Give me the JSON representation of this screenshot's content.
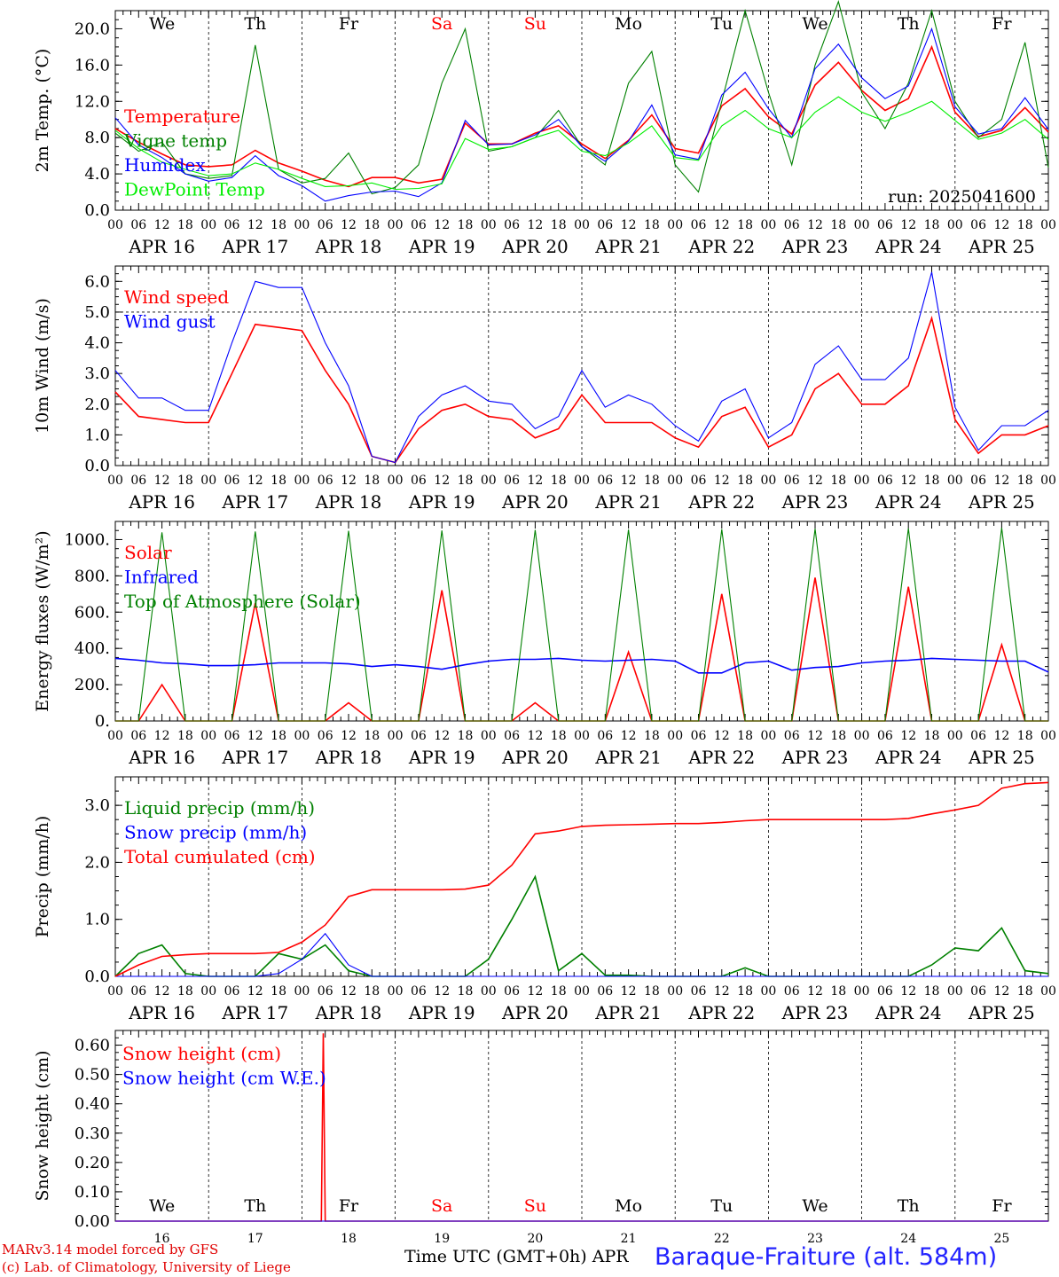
{
  "run_label": "run: 2025041600",
  "footer": {
    "model_line": "MARv3.14 model forced by GFS",
    "copyright_line": "(c) Lab. of Climatology, University of Liege",
    "time_axis_label": "Time UTC (GMT+0h)",
    "month_label": "APR",
    "station": "Baraque-Fraiture (alt. 584m)"
  },
  "colors": {
    "red": "#ff0000",
    "darkgreen": "#008000",
    "blue": "#0000ff",
    "lightgreen": "#00ee00",
    "grey": "#555555"
  },
  "chart_data": [
    {
      "type": "line",
      "ylabel": "2m Temp. (°C)",
      "ylim": [
        0,
        22
      ],
      "yticks": [
        "0.0",
        "4.0",
        "8.0",
        "12.0",
        "16.0",
        "20.0"
      ],
      "day_labels": [
        "We",
        "Th",
        "Fr",
        "Sa",
        "Su",
        "Mo",
        "Tu",
        "We",
        "Th",
        "Fr"
      ],
      "day_label_colors": [
        "#000000",
        "#000000",
        "#000000",
        "#ff0000",
        "#ff0000",
        "#000000",
        "#000000",
        "#000000",
        "#000000",
        "#000000"
      ],
      "hour_ticks": [
        "00",
        "06",
        "12",
        "18"
      ],
      "date_labels": [
        "APR 16",
        "APR 17",
        "APR 18",
        "APR 19",
        "APR 20",
        "APR 21",
        "APR 22",
        "APR 23",
        "APR 24",
        "APR 25"
      ],
      "x_hours": [
        0,
        6,
        12,
        18,
        24,
        30,
        36,
        42,
        48,
        54,
        60,
        66,
        72,
        78,
        84,
        90,
        96,
        102,
        108,
        114,
        120,
        126,
        132,
        138,
        144,
        150,
        156,
        162,
        168,
        174,
        180,
        186,
        192,
        198,
        204,
        210,
        216,
        222,
        228,
        234,
        240
      ],
      "series": [
        {
          "name": "Temperature",
          "color": "#ff0000",
          "values": [
            9.0,
            7.5,
            6.2,
            5.0,
            4.8,
            5.0,
            6.6,
            5.2,
            4.3,
            3.3,
            2.6,
            3.6,
            3.6,
            3.0,
            3.4,
            9.6,
            7.3,
            7.3,
            8.5,
            9.3,
            7.3,
            5.7,
            7.7,
            10.5,
            6.8,
            6.3,
            11.5,
            13.4,
            10.3,
            8.4,
            13.8,
            16.3,
            13.2,
            11.0,
            12.3,
            18.0,
            10.8,
            8.1,
            8.8,
            11.3,
            8.6
          ]
        },
        {
          "name": "Vigne temp",
          "color": "#008000",
          "values": [
            8.5,
            6.5,
            7.5,
            4.0,
            3.5,
            3.8,
            18.2,
            4.5,
            3.0,
            3.5,
            6.3,
            1.8,
            2.5,
            5.0,
            14.0,
            20.0,
            6.5,
            7.0,
            8.0,
            11.0,
            7.0,
            5.0,
            14.0,
            17.5,
            5.0,
            2.0,
            12.0,
            22.0,
            13.0,
            5.0,
            16.0,
            23.0,
            13.0,
            9.0,
            14.0,
            22.0,
            12.0,
            8.0,
            10.0,
            18.5,
            4.7
          ]
        },
        {
          "name": "Humidex",
          "color": "#0000ff",
          "values": [
            10.2,
            7.2,
            5.8,
            4.0,
            3.2,
            3.6,
            6.0,
            3.8,
            2.7,
            1.0,
            1.6,
            2.0,
            2.1,
            1.5,
            3.0,
            9.9,
            7.2,
            7.3,
            8.3,
            10.0,
            7.0,
            5.4,
            7.6,
            11.6,
            6.1,
            5.6,
            12.7,
            15.2,
            11.2,
            8.0,
            15.6,
            18.3,
            14.6,
            12.3,
            13.7,
            20.0,
            11.4,
            8.4,
            9.0,
            12.4,
            8.9
          ]
        },
        {
          "name": "DewPoint Temp",
          "color": "#00ee00",
          "values": [
            8.8,
            6.8,
            5.3,
            4.5,
            3.8,
            4.0,
            5.2,
            4.5,
            3.5,
            2.6,
            2.7,
            3.0,
            2.3,
            2.4,
            2.9,
            7.9,
            6.7,
            7.0,
            8.0,
            8.8,
            6.5,
            6.0,
            7.4,
            9.3,
            5.8,
            5.5,
            9.3,
            11.0,
            9.0,
            8.0,
            10.8,
            12.5,
            10.8,
            9.8,
            10.8,
            12.0,
            9.9,
            7.8,
            8.5,
            10.0,
            7.8
          ]
        }
      ]
    },
    {
      "type": "line",
      "ylabel": "10m Wind (m/s)",
      "ylim": [
        0,
        6.5
      ],
      "yticks": [
        "0.0",
        "1.0",
        "2.0",
        "3.0",
        "4.0",
        "5.0",
        "6.0"
      ],
      "hour_ticks": [
        "00",
        "06",
        "12",
        "18"
      ],
      "date_labels": [
        "APR 16",
        "APR 17",
        "APR 18",
        "APR 19",
        "APR 20",
        "APR 21",
        "APR 22",
        "APR 23",
        "APR 24",
        "APR 25"
      ],
      "reference_line": 5.0,
      "x_hours": [
        0,
        6,
        12,
        18,
        24,
        30,
        36,
        42,
        48,
        54,
        60,
        66,
        72,
        78,
        84,
        90,
        96,
        102,
        108,
        114,
        120,
        126,
        132,
        138,
        144,
        150,
        156,
        162,
        168,
        174,
        180,
        186,
        192,
        198,
        204,
        210,
        216,
        222,
        228,
        234,
        240
      ],
      "series": [
        {
          "name": "Wind speed",
          "color": "#ff0000",
          "values": [
            2.4,
            1.6,
            1.5,
            1.4,
            1.4,
            3.0,
            4.6,
            4.5,
            4.4,
            3.1,
            2.0,
            0.3,
            0.1,
            1.2,
            1.8,
            2.0,
            1.6,
            1.5,
            0.9,
            1.2,
            2.3,
            1.4,
            1.4,
            1.4,
            0.9,
            0.6,
            1.6,
            1.9,
            0.6,
            1.0,
            2.5,
            3.0,
            2.0,
            2.0,
            2.6,
            4.8,
            1.5,
            0.4,
            1.0,
            1.0,
            1.3
          ]
        },
        {
          "name": "Wind gust",
          "color": "#0000ff",
          "values": [
            3.1,
            2.2,
            2.2,
            1.8,
            1.8,
            4.0,
            6.0,
            5.8,
            5.8,
            4.0,
            2.6,
            0.3,
            0.1,
            1.6,
            2.3,
            2.6,
            2.1,
            2.0,
            1.2,
            1.6,
            3.1,
            1.9,
            2.3,
            2.0,
            1.3,
            0.8,
            2.1,
            2.5,
            0.9,
            1.4,
            3.3,
            3.9,
            2.8,
            2.8,
            3.5,
            6.3,
            1.9,
            0.5,
            1.3,
            1.3,
            1.8
          ]
        }
      ]
    },
    {
      "type": "line",
      "ylabel": "Energy fluxes (W/m²)",
      "ylim": [
        0,
        1100
      ],
      "yticks": [
        "0.",
        "200.",
        "400.",
        "600.",
        "800.",
        "1000."
      ],
      "hour_ticks": [
        "00",
        "06",
        "12",
        "18"
      ],
      "date_labels": [
        "APR 16",
        "APR 17",
        "APR 18",
        "APR 19",
        "APR 20",
        "APR 21",
        "APR 22",
        "APR 23",
        "APR 24",
        "APR 25"
      ],
      "x_hours": [
        0,
        6,
        12,
        18,
        24,
        30,
        36,
        42,
        48,
        54,
        60,
        66,
        72,
        78,
        84,
        90,
        96,
        102,
        108,
        114,
        120,
        126,
        132,
        138,
        144,
        150,
        156,
        162,
        168,
        174,
        180,
        186,
        192,
        198,
        204,
        210,
        216,
        222,
        228,
        234,
        240
      ],
      "series": [
        {
          "name": "Solar",
          "color": "#ff0000",
          "values": [
            0,
            0,
            200,
            0,
            0,
            0,
            650,
            0,
            0,
            0,
            100,
            0,
            0,
            0,
            720,
            0,
            0,
            0,
            100,
            0,
            0,
            0,
            380,
            0,
            0,
            0,
            700,
            0,
            0,
            0,
            790,
            0,
            0,
            0,
            740,
            0,
            0,
            0,
            420,
            0,
            0
          ]
        },
        {
          "name": "Infrared",
          "color": "#0000ff",
          "values": [
            345,
            335,
            320,
            315,
            305,
            305,
            310,
            320,
            320,
            320,
            315,
            300,
            310,
            300,
            285,
            310,
            330,
            340,
            340,
            345,
            335,
            330,
            335,
            340,
            330,
            265,
            265,
            320,
            330,
            280,
            295,
            300,
            320,
            330,
            335,
            345,
            340,
            335,
            330,
            330,
            270
          ]
        },
        {
          "name": "Top of Atmosphere (Solar)",
          "color": "#008000",
          "values": [
            0,
            0,
            1040,
            0,
            0,
            0,
            1045,
            0,
            0,
            0,
            1048,
            0,
            0,
            0,
            1050,
            0,
            0,
            0,
            1053,
            0,
            0,
            0,
            1055,
            0,
            0,
            0,
            1057,
            0,
            0,
            0,
            1060,
            0,
            0,
            0,
            1062,
            0,
            0,
            0,
            1065,
            0,
            0
          ]
        }
      ]
    },
    {
      "type": "line",
      "ylabel": "Precip (mm/h)",
      "ylim": [
        0,
        3.5
      ],
      "yticks": [
        "0.0",
        "1.0",
        "2.0",
        "3.0"
      ],
      "hour_ticks": [
        "00",
        "06",
        "12",
        "18"
      ],
      "date_labels": [
        "APR 16",
        "APR 17",
        "APR 18",
        "APR 19",
        "APR 20",
        "APR 21",
        "APR 22",
        "APR 23",
        "APR 24",
        "APR 25"
      ],
      "x_hours": [
        0,
        6,
        12,
        18,
        24,
        30,
        36,
        42,
        48,
        54,
        60,
        66,
        72,
        78,
        84,
        90,
        96,
        102,
        108,
        114,
        120,
        126,
        132,
        138,
        144,
        150,
        156,
        162,
        168,
        174,
        180,
        186,
        192,
        198,
        204,
        210,
        216,
        222,
        228,
        234,
        240
      ],
      "series": [
        {
          "name": "Liquid precip (mm/h)",
          "color": "#008000",
          "values": [
            0,
            0.4,
            0.55,
            0.05,
            0,
            0,
            0,
            0.4,
            0.3,
            0.55,
            0.1,
            0,
            0,
            0,
            0,
            0,
            0.3,
            1.0,
            1.75,
            0.1,
            0.4,
            0.02,
            0.02,
            0,
            0,
            0,
            0,
            0.15,
            0,
            0,
            0,
            0,
            0,
            0,
            0,
            0.2,
            0.5,
            0.45,
            0.85,
            0.1,
            0.05
          ]
        },
        {
          "name": "Snow precip (mm/h)",
          "color": "#0000ff",
          "values": [
            0,
            0,
            0,
            0,
            0,
            0,
            0,
            0.05,
            0.3,
            0.75,
            0.2,
            0,
            0,
            0,
            0,
            0,
            0,
            0,
            0,
            0,
            0,
            0,
            0,
            0,
            0,
            0,
            0,
            0,
            0,
            0,
            0,
            0,
            0,
            0,
            0,
            0,
            0,
            0,
            0,
            0,
            0
          ]
        },
        {
          "name": "Total cumulated (cm)",
          "color": "#ff0000",
          "values": [
            0,
            0.2,
            0.35,
            0.38,
            0.4,
            0.4,
            0.4,
            0.42,
            0.6,
            0.9,
            1.4,
            1.52,
            1.52,
            1.52,
            1.52,
            1.53,
            1.6,
            1.95,
            2.5,
            2.55,
            2.63,
            2.65,
            2.66,
            2.67,
            2.68,
            2.68,
            2.7,
            2.73,
            2.75,
            2.75,
            2.75,
            2.75,
            2.75,
            2.75,
            2.77,
            2.85,
            2.92,
            3.0,
            3.3,
            3.38,
            3.4
          ]
        }
      ]
    },
    {
      "type": "line",
      "ylabel": "Snow height (cm)",
      "ylim": [
        0,
        0.65
      ],
      "yticks": [
        "0.00",
        "0.10",
        "0.20",
        "0.30",
        "0.40",
        "0.50",
        "0.60"
      ],
      "day_labels": [
        "We",
        "Th",
        "Fr",
        "Sa",
        "Su",
        "Mo",
        "Tu",
        "We",
        "Th",
        "Fr"
      ],
      "day_label_colors": [
        "#000000",
        "#000000",
        "#000000",
        "#ff0000",
        "#ff0000",
        "#000000",
        "#000000",
        "#000000",
        "#000000",
        "#000000"
      ],
      "day_numbers": [
        "16",
        "17",
        "18",
        "19",
        "20",
        "21",
        "22",
        "23",
        "24",
        "25"
      ],
      "x_hours": [
        0,
        50,
        53,
        53.5,
        54,
        57,
        240
      ],
      "series": [
        {
          "name": "Snow height (cm)",
          "color": "#ff0000",
          "values": [
            0,
            0,
            0,
            0.64,
            0,
            0,
            0
          ]
        },
        {
          "name": "Snow height (cm W.E.)",
          "color": "#0000ff",
          "values": [
            0,
            0,
            0,
            0,
            0,
            0,
            0
          ]
        }
      ]
    }
  ]
}
